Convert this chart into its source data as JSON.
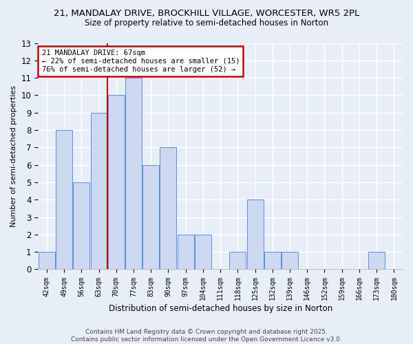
{
  "title1": "21, MANDALAY DRIVE, BROCKHILL VILLAGE, WORCESTER, WR5 2PL",
  "title2": "Size of property relative to semi-detached houses in Norton",
  "xlabel": "Distribution of semi-detached houses by size in Norton",
  "ylabel": "Number of semi-detached properties",
  "categories": [
    "42sqm",
    "49sqm",
    "56sqm",
    "63sqm",
    "70sqm",
    "77sqm",
    "83sqm",
    "90sqm",
    "97sqm",
    "104sqm",
    "111sqm",
    "118sqm",
    "125sqm",
    "132sqm",
    "139sqm",
    "146sqm",
    "152sqm",
    "159sqm",
    "166sqm",
    "173sqm",
    "180sqm"
  ],
  "values": [
    1,
    8,
    5,
    9,
    10,
    11,
    6,
    7,
    2,
    2,
    0,
    1,
    4,
    1,
    1,
    0,
    0,
    0,
    0,
    1,
    0
  ],
  "bar_color": "#ccd9f0",
  "bar_edge_color": "#5b8dd9",
  "bg_color": "#e8eef8",
  "grid_color": "#ffffff",
  "redline_index": 4,
  "annotation_text": "21 MANDALAY DRIVE: 67sqm\n← 22% of semi-detached houses are smaller (15)\n76% of semi-detached houses are larger (52) →",
  "annotation_box_color": "#ffffff",
  "annotation_box_edge": "#cc0000",
  "ylim": [
    0,
    13
  ],
  "yticks": [
    0,
    1,
    2,
    3,
    4,
    5,
    6,
    7,
    8,
    9,
    10,
    11,
    12,
    13
  ],
  "footer1": "Contains HM Land Registry data © Crown copyright and database right 2025.",
  "footer2": "Contains public sector information licensed under the Open Government Licence v3.0."
}
